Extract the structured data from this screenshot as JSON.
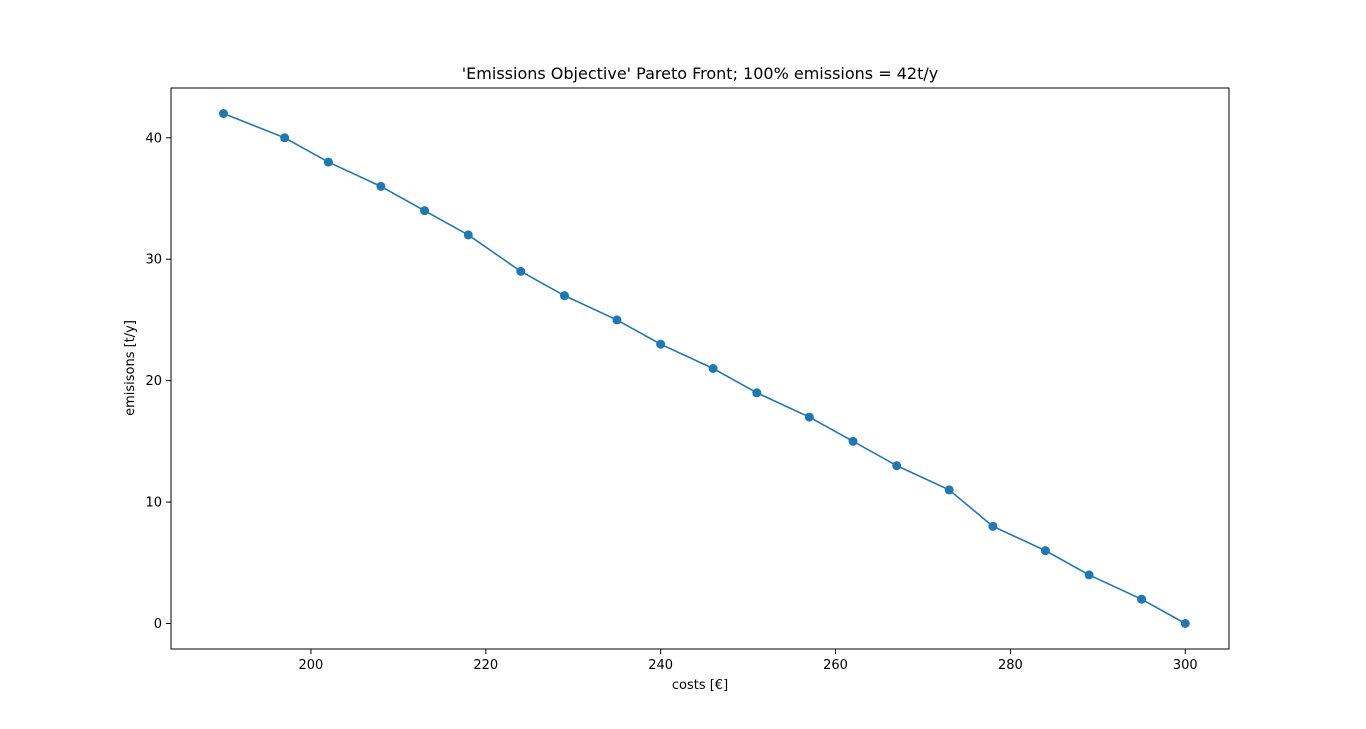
{
  "chart_data": {
    "type": "line",
    "title": "'Emissions Objective' Pareto Front; 100% emissions = 42t/y",
    "xlabel": "costs [€]",
    "ylabel": "emisisons [t/y]",
    "xlim": [
      184,
      305
    ],
    "ylim": [
      -2.1,
      44.1
    ],
    "x_ticks": [
      200,
      220,
      240,
      260,
      280,
      300
    ],
    "y_ticks": [
      0,
      10,
      20,
      30,
      40
    ],
    "grid": false,
    "legend": "none",
    "series": [
      {
        "color": "#1f77b4",
        "marker": "circle",
        "x": [
          190,
          197,
          202,
          208,
          213,
          218,
          224,
          229,
          235,
          240,
          246,
          251,
          257,
          262,
          267,
          273,
          278,
          284,
          289,
          295,
          300
        ],
        "y": [
          42,
          40,
          38,
          36,
          34,
          32,
          29,
          27,
          25,
          23,
          21,
          19,
          17,
          15,
          13,
          11,
          8,
          6,
          4,
          2,
          0
        ]
      }
    ]
  }
}
